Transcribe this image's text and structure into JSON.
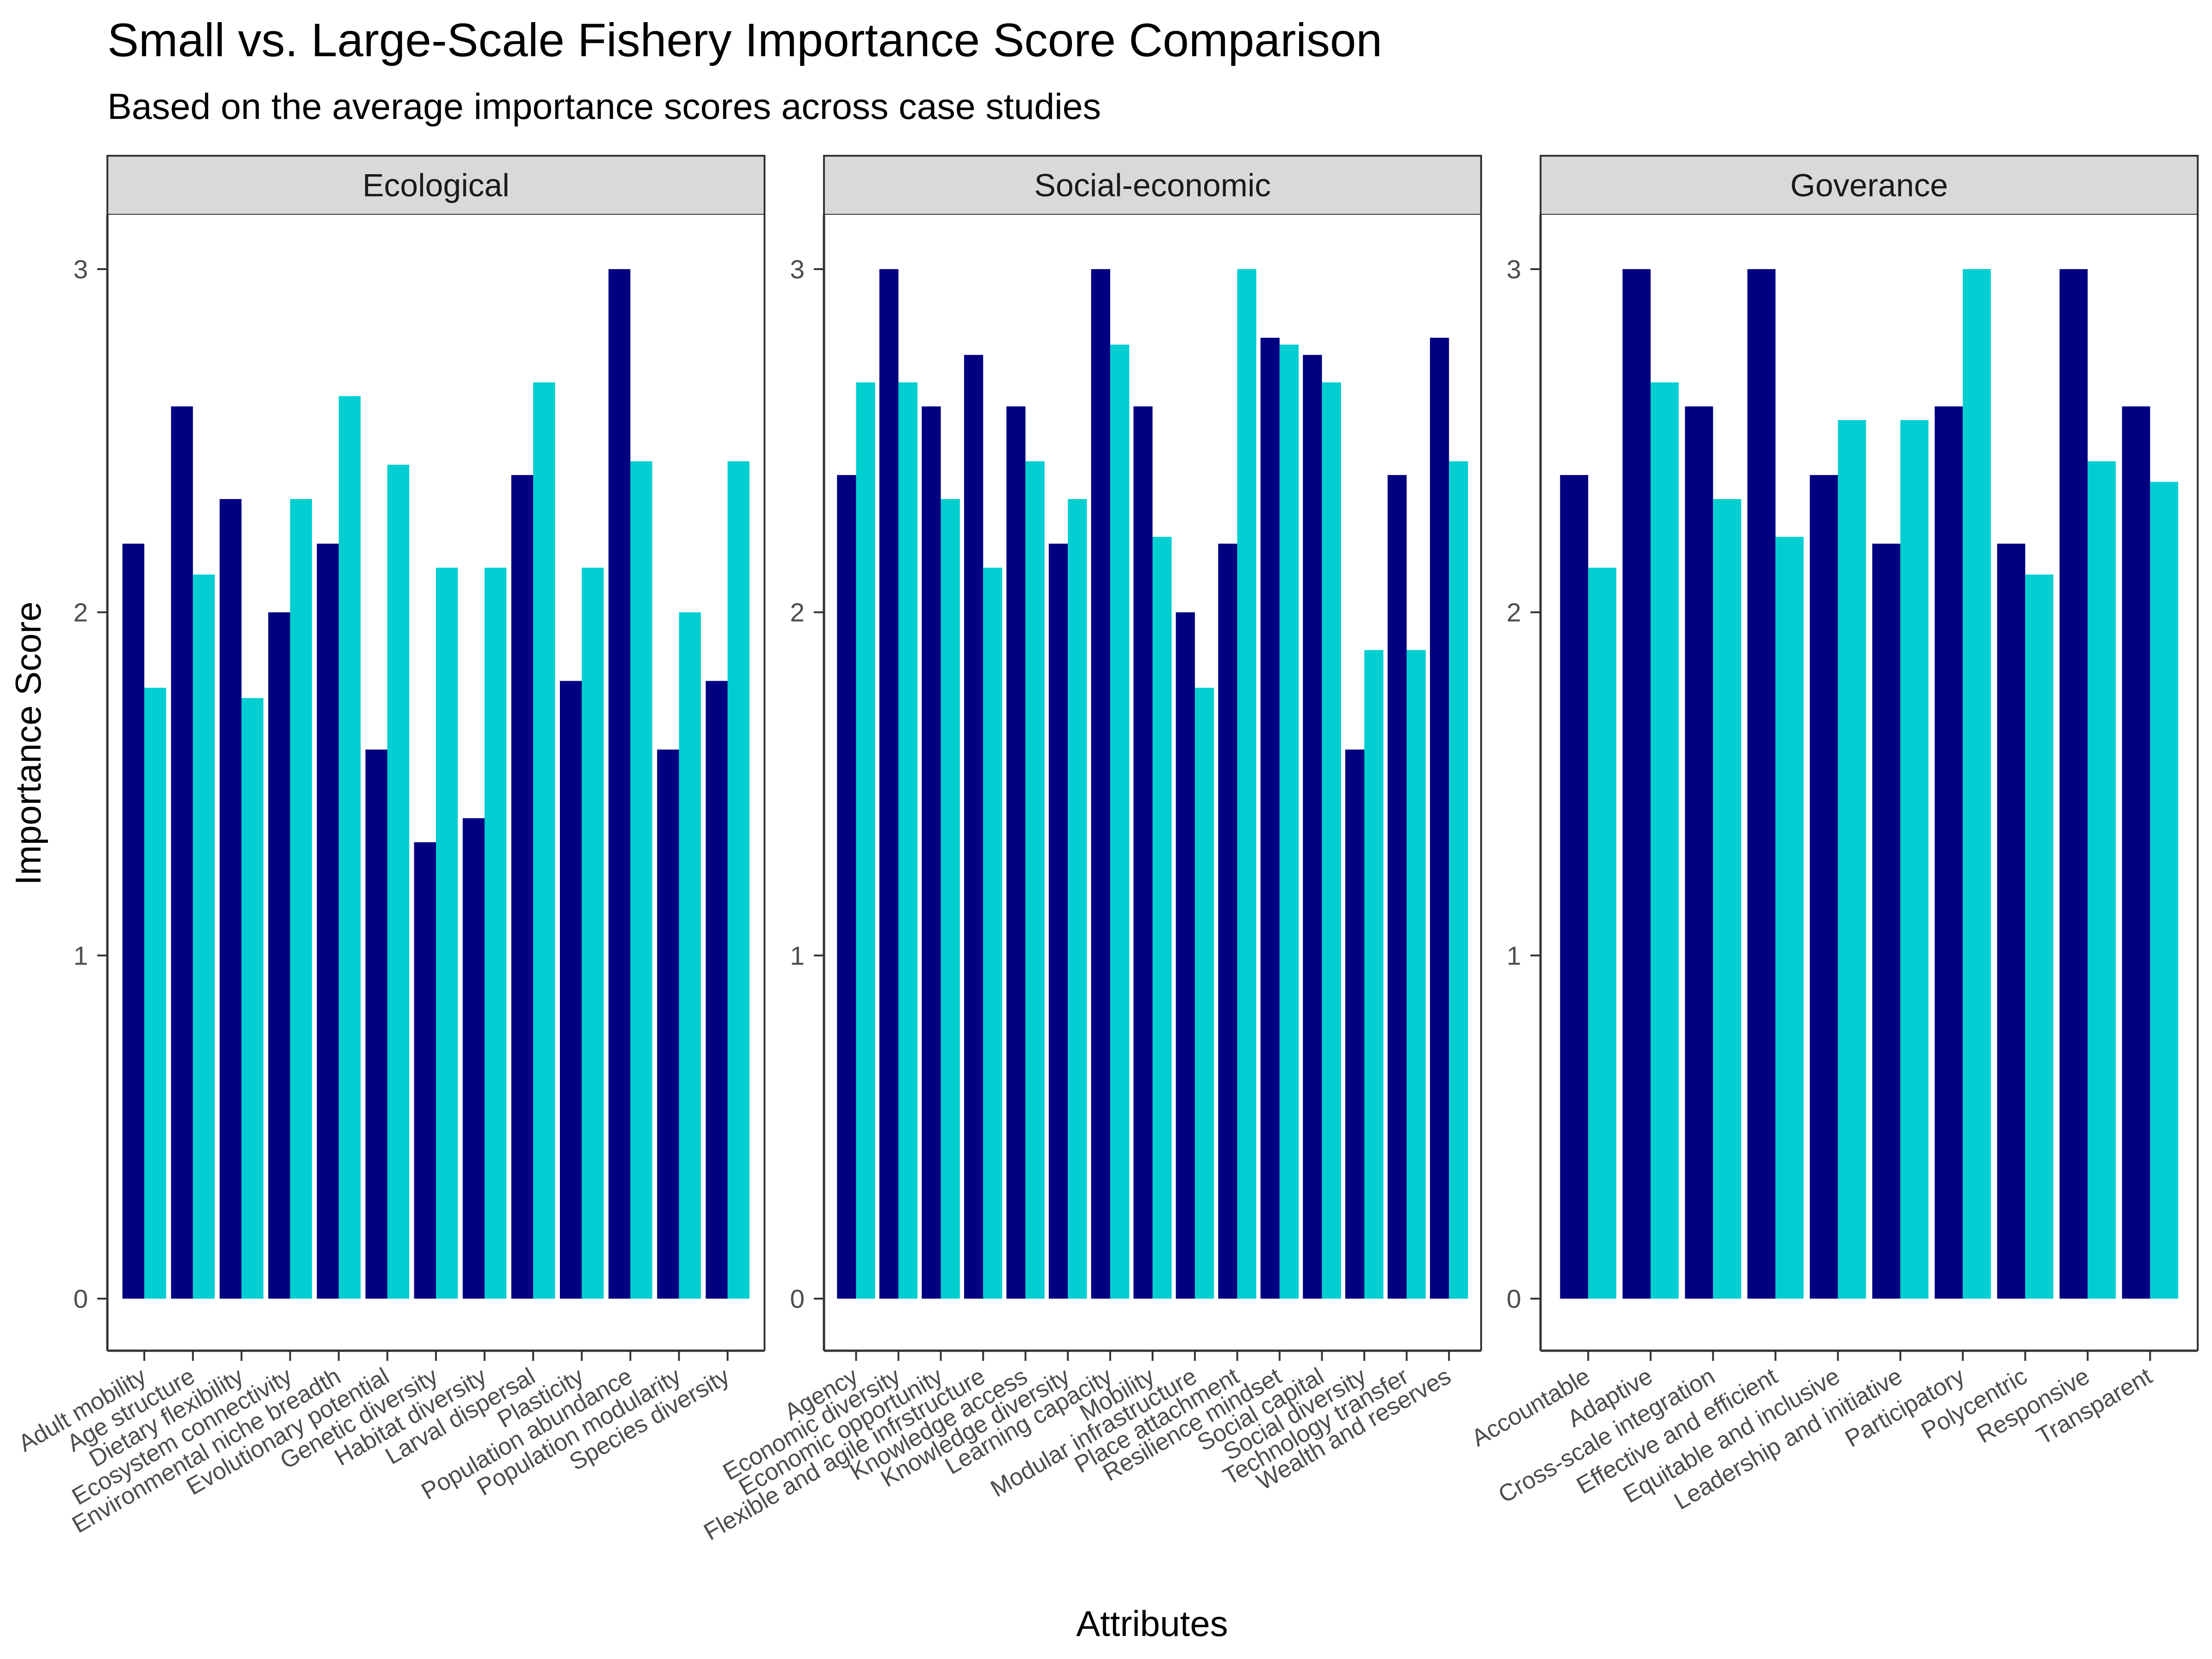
{
  "chart_data": {
    "type": "bar",
    "title": "Small vs. Large-Scale Fishery Importance Score Comparison",
    "subtitle": "Based on the average importance scores across case studies",
    "xlabel": "Attributes",
    "ylabel": "Importance Score",
    "ylim": [
      0,
      3
    ],
    "yticks": [
      0,
      1,
      2,
      3
    ],
    "grid": false,
    "legend": "none",
    "series_colors": [
      "#000080",
      "#00CED1"
    ],
    "panels": [
      {
        "name": "Ecological",
        "categories": [
          "Adult mobility",
          "Age structure",
          "Dietary flexibility",
          "Ecosystem connectivity",
          "Environmental niche breadth",
          "Evolutionary potential",
          "Genetic diversity",
          "Habitat diversity",
          "Larval dispersal",
          "Plasticity",
          "Population abundance",
          "Population modularity",
          "Species diversity"
        ],
        "series": [
          {
            "values": [
              2.2,
              2.6,
              2.33,
              2.0,
              2.2,
              1.6,
              1.33,
              1.4,
              2.4,
              1.8,
              3.0,
              1.6,
              1.8
            ]
          },
          {
            "values": [
              1.78,
              2.11,
              1.75,
              2.33,
              2.63,
              2.43,
              2.13,
              2.13,
              2.67,
              2.13,
              2.44,
              2.0,
              2.44
            ]
          }
        ]
      },
      {
        "name": "Social-economic",
        "categories": [
          "Agency",
          "Economic diversity",
          "Economic opportunity",
          "Flexible and agile infrstructure",
          "Knowledge access",
          "Knowledge diversity",
          "Learning capacity",
          "Mobility",
          "Modular infrastructure",
          "Place attachment",
          "Resilience mindset",
          "Social capital",
          "Social diversity",
          "Technology transfer",
          "Wealth and reserves"
        ],
        "series": [
          {
            "values": [
              2.4,
              3.0,
              2.6,
              2.75,
              2.6,
              2.2,
              3.0,
              2.6,
              2.0,
              2.2,
              2.8,
              2.75,
              1.6,
              2.4,
              2.8
            ]
          },
          {
            "values": [
              2.67,
              2.67,
              2.33,
              2.13,
              2.44,
              2.33,
              2.78,
              2.22,
              1.78,
              3.0,
              2.78,
              2.67,
              1.89,
              1.89,
              2.44
            ]
          }
        ]
      },
      {
        "name": "Goverance",
        "categories": [
          "Accountable",
          "Adaptive",
          "Cross-scale integration",
          "Effective and efficient",
          "Equitable and inclusive",
          "Leadership and initiative",
          "Participatory",
          "Polycentric",
          "Responsive",
          "Transparent"
        ],
        "series": [
          {
            "values": [
              2.4,
              3.0,
              2.6,
              3.0,
              2.4,
              2.2,
              2.6,
              2.2,
              3.0,
              2.6
            ]
          },
          {
            "values": [
              2.13,
              2.67,
              2.33,
              2.22,
              2.56,
              2.56,
              3.0,
              2.11,
              2.44,
              2.38
            ]
          }
        ]
      }
    ]
  }
}
